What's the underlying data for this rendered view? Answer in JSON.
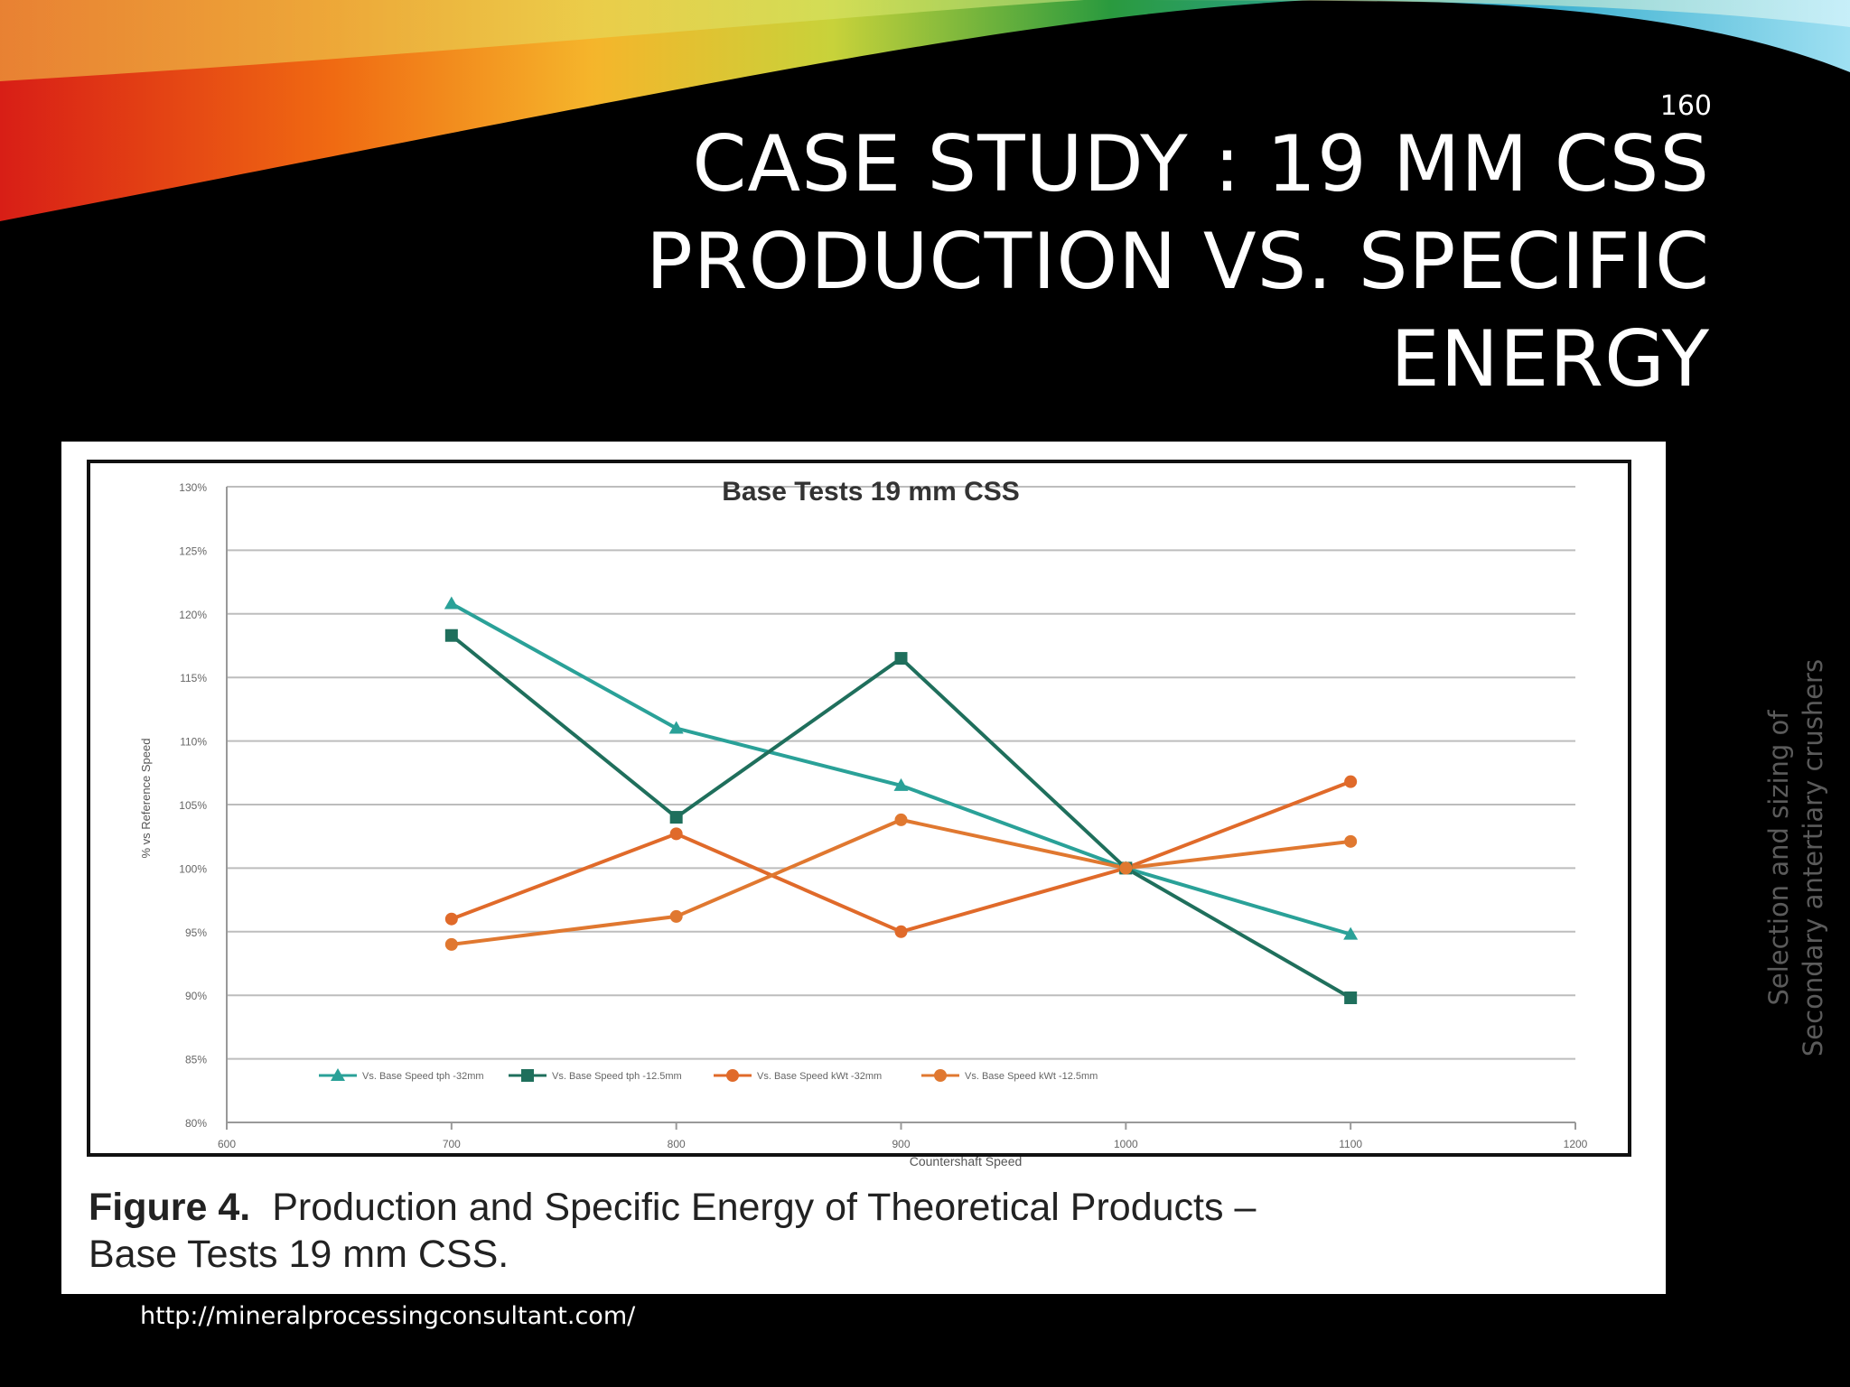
{
  "slide": {
    "number": "160",
    "title_lines": [
      "CASE STUDY : 19 MM CSS",
      "PRODUCTION VS. SPECIFIC",
      "ENERGY"
    ],
    "source_url": "http://mineralprocessingconsultant.com/",
    "side_note_lines": [
      "Selection and sizing of",
      "Secondary antertiary crushers"
    ],
    "caption": {
      "label": "Figure 4.",
      "line1_rest": "Production and Specific Energy of Theoretical Products –",
      "line2": "Base Tests 19 mm CSS."
    }
  },
  "chart_data": {
    "type": "line",
    "title": "Base Tests 19 mm CSS",
    "xlabel": "Countershaft Speed",
    "ylabel": "% vs Reference Speed",
    "x_ticks": [
      "600",
      "700",
      "800",
      "900",
      "1000",
      "1100",
      "1200"
    ],
    "y_ticks": [
      "80%",
      "85%",
      "90%",
      "95%",
      "100%",
      "105%",
      "110%",
      "115%",
      "120%",
      "125%",
      "130%"
    ],
    "xlim": [
      600,
      1200
    ],
    "ylim": [
      80,
      130
    ],
    "grid": true,
    "legend_position": "bottom",
    "x": [
      700,
      800,
      900,
      1000,
      1100
    ],
    "series": [
      {
        "name": "Vs. Base Speed tph -32mm",
        "values": [
          120.8,
          111.0,
          106.5,
          100.0,
          94.8
        ],
        "color": "#2aa198",
        "marker": "triangle"
      },
      {
        "name": "Vs. Base Speed tph -12.5mm",
        "values": [
          118.3,
          104.0,
          116.5,
          100.0,
          89.8
        ],
        "color": "#1f6f5c",
        "marker": "square"
      },
      {
        "name": "Vs. Base Speed kWt -32mm",
        "values": [
          96.0,
          102.7,
          95.0,
          100.0,
          106.8
        ],
        "color": "#e06a2a",
        "marker": "circle"
      },
      {
        "name": "Vs. Base Speed kWt -12.5mm",
        "values": [
          94.0,
          96.2,
          103.8,
          100.0,
          102.1
        ],
        "color": "#e07830",
        "marker": "circle"
      }
    ]
  }
}
